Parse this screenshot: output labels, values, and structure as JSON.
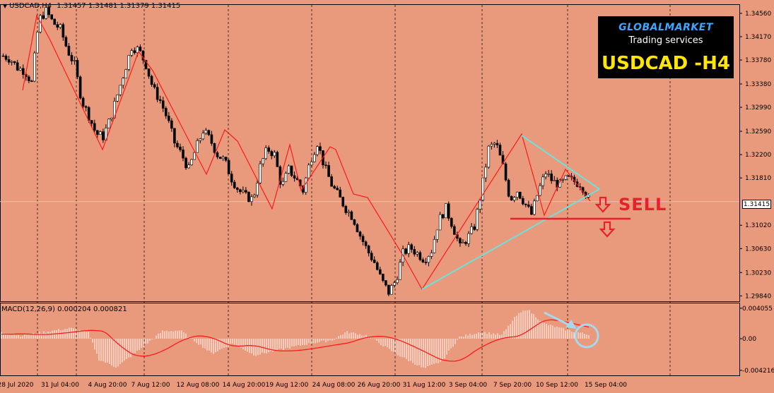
{
  "header": {
    "symbol": "USDCAD,H4",
    "ohlc": "1.31457 1.31481 1.31379 1.31415"
  },
  "macd_label": "MACD(12,26,9) 0.000204 0.000821",
  "current_price": "1.31415",
  "logo": {
    "brand": "GLOBALMARKET",
    "tagline": "Trading services",
    "symbol": "USDCAD -H4"
  },
  "annotation": {
    "sell_label": "SELL"
  },
  "colors": {
    "background": "#e99a7c",
    "candle": "#000000",
    "zigzag": "#ff1a1a",
    "triangle": "#6fe0dc",
    "macd_hist": "#ffffff",
    "signal": "#ff1a1a",
    "sell": "#e8202a",
    "logo_text": "#ffe600"
  },
  "chart_data": [
    {
      "type": "candlestick",
      "y_axis_labels": [
        "1.34560",
        "1.34170",
        "1.33780",
        "1.33380",
        "1.32990",
        "1.32590",
        "1.32200",
        "1.31810",
        "1.31020",
        "1.30630",
        "1.30230",
        "1.29840"
      ],
      "x_axis_labels": [
        "28 Jul 2020",
        "31 Jul 04:00",
        "4 Aug 20:00",
        "7 Aug 12:00",
        "12 Aug 08:00",
        "14 Aug 20:00",
        "19 Aug 12:00",
        "24 Aug 08:00",
        "26 Aug 20:00",
        "31 Aug 12:00",
        "3 Sep 04:00",
        "7 Sep 20:00",
        "10 Sep 12:00",
        "15 Sep 04:00"
      ],
      "ylim": [
        1.2975,
        1.347
      ],
      "close_path": [
        [
          0,
          1.3385
        ],
        [
          5,
          1.338
        ],
        [
          10,
          1.3365
        ],
        [
          15,
          1.336
        ],
        [
          20,
          1.334
        ],
        [
          25,
          1.3445
        ],
        [
          30,
          1.346
        ],
        [
          35,
          1.344
        ],
        [
          40,
          1.343
        ],
        [
          45,
          1.3395
        ],
        [
          50,
          1.337
        ],
        [
          55,
          1.331
        ],
        [
          60,
          1.3285
        ],
        [
          65,
          1.3255
        ],
        [
          70,
          1.325
        ],
        [
          75,
          1.328
        ],
        [
          80,
          1.332
        ],
        [
          85,
          1.336
        ],
        [
          90,
          1.34
        ],
        [
          95,
          1.3395
        ],
        [
          100,
          1.337
        ],
        [
          105,
          1.333
        ],
        [
          110,
          1.331
        ],
        [
          115,
          1.328
        ],
        [
          120,
          1.324
        ],
        [
          125,
          1.322
        ],
        [
          130,
          1.3195
        ],
        [
          135,
          1.323
        ],
        [
          140,
          1.326
        ],
        [
          145,
          1.3245
        ],
        [
          150,
          1.322
        ],
        [
          155,
          1.321
        ],
        [
          160,
          1.318
        ],
        [
          165,
          1.316
        ],
        [
          170,
          1.315
        ],
        [
          175,
          1.3145
        ],
        [
          180,
          1.32
        ],
        [
          185,
          1.323
        ],
        [
          190,
          1.322
        ],
        [
          195,
          1.3165
        ],
        [
          200,
          1.3195
        ],
        [
          205,
          1.318
        ],
        [
          210,
          1.316
        ],
        [
          215,
          1.321
        ],
        [
          220,
          1.324
        ],
        [
          225,
          1.32
        ],
        [
          230,
          1.317
        ],
        [
          235,
          1.315
        ],
        [
          240,
          1.313
        ],
        [
          245,
          1.3115
        ],
        [
          250,
          1.3085
        ],
        [
          255,
          1.306
        ],
        [
          260,
          1.304
        ],
        [
          265,
          1.301
        ],
        [
          270,
          1.299
        ],
        [
          275,
          1.301
        ],
        [
          280,
          1.3055
        ],
        [
          285,
          1.3065
        ],
        [
          290,
          1.3055
        ],
        [
          295,
          1.3045
        ],
        [
          300,
          1.306
        ],
        [
          305,
          1.311
        ],
        [
          310,
          1.313
        ],
        [
          315,
          1.31
        ],
        [
          320,
          1.3065
        ],
        [
          325,
          1.308
        ],
        [
          330,
          1.31
        ],
        [
          335,
          1.316
        ],
        [
          340,
          1.323
        ],
        [
          345,
          1.324
        ],
        [
          350,
          1.32
        ],
        [
          355,
          1.3145
        ],
        [
          360,
          1.316
        ],
        [
          365,
          1.314
        ],
        [
          370,
          1.312
        ],
        [
          375,
          1.316
        ],
        [
          380,
          1.319
        ],
        [
          385,
          1.3175
        ],
        [
          390,
          1.317
        ],
        [
          395,
          1.318
        ],
        [
          400,
          1.3175
        ],
        [
          405,
          1.317
        ],
        [
          410,
          1.3145
        ]
      ]
    },
    {
      "type": "macd",
      "name": "MACD(12,26,9)",
      "y_axis_labels": [
        "0.004055",
        "0.00",
        "-0.004216"
      ],
      "ylim": [
        -0.0047,
        0.0047
      ],
      "values": {
        "macd": 0.000204,
        "signal": 0.000821
      }
    }
  ]
}
